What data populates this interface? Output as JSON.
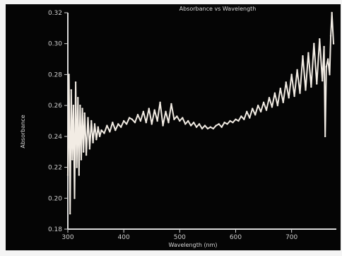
{
  "chart_data": {
    "type": "line",
    "title": "Absorbance vs Wavelength",
    "xlabel": "Wavelength (nm)",
    "ylabel": "Absorbance",
    "xlim": [
      300,
      780
    ],
    "ylim": [
      0.18,
      0.32
    ],
    "xticks": [
      300,
      400,
      500,
      600,
      700
    ],
    "xtick_labels": [
      "300",
      "400",
      "500",
      "600",
      "700"
    ],
    "yticks": [
      0.18,
      0.2,
      0.22,
      0.24,
      0.26,
      0.28,
      0.3,
      0.32
    ],
    "ytick_labels": [
      "0.18",
      "0.20",
      "0.22",
      "0.24",
      "0.26",
      "0.28",
      "0.30",
      "0.32"
    ],
    "grid": false,
    "colors": {
      "background": "#050505",
      "trace": "#f2ece4",
      "axes": "#d9d9d9"
    },
    "series": [
      {
        "x": [
          300,
          302,
          304,
          306,
          308,
          310,
          312,
          314,
          316,
          318,
          320,
          322,
          324,
          326,
          328,
          330,
          333,
          336,
          339,
          342,
          345,
          348,
          351,
          354,
          357,
          360,
          365,
          370,
          375,
          380,
          385,
          390,
          395,
          400,
          405,
          410,
          415,
          420,
          425,
          430,
          435,
          440,
          445,
          450,
          455,
          460,
          465,
          470,
          475,
          480,
          485,
          490,
          495,
          500,
          505,
          510,
          515,
          520,
          525,
          530,
          535,
          540,
          545,
          550,
          555,
          560,
          565,
          570,
          575,
          580,
          585,
          590,
          595,
          600,
          605,
          610,
          615,
          620,
          625,
          630,
          635,
          640,
          645,
          650,
          655,
          660,
          665,
          670,
          675,
          680,
          685,
          690,
          695,
          700,
          705,
          710,
          715,
          720,
          725,
          730,
          735,
          740,
          745,
          750,
          755,
          758,
          760,
          762,
          765,
          768,
          770,
          772,
          775
        ],
        "y": [
          0.215,
          0.28,
          0.19,
          0.27,
          0.225,
          0.26,
          0.2,
          0.275,
          0.22,
          0.265,
          0.215,
          0.26,
          0.225,
          0.258,
          0.23,
          0.255,
          0.228,
          0.252,
          0.232,
          0.25,
          0.236,
          0.248,
          0.238,
          0.246,
          0.24,
          0.244,
          0.242,
          0.247,
          0.243,
          0.249,
          0.244,
          0.248,
          0.246,
          0.25,
          0.248,
          0.252,
          0.251,
          0.249,
          0.254,
          0.25,
          0.256,
          0.249,
          0.258,
          0.248,
          0.257,
          0.25,
          0.262,
          0.247,
          0.256,
          0.249,
          0.261,
          0.251,
          0.253,
          0.25,
          0.252,
          0.248,
          0.25,
          0.247,
          0.249,
          0.246,
          0.248,
          0.245,
          0.247,
          0.245,
          0.246,
          0.245,
          0.247,
          0.248,
          0.246,
          0.249,
          0.248,
          0.25,
          0.249,
          0.251,
          0.25,
          0.253,
          0.251,
          0.256,
          0.252,
          0.258,
          0.254,
          0.26,
          0.256,
          0.262,
          0.257,
          0.265,
          0.259,
          0.268,
          0.26,
          0.271,
          0.262,
          0.275,
          0.265,
          0.28,
          0.266,
          0.283,
          0.268,
          0.292,
          0.27,
          0.294,
          0.272,
          0.3,
          0.274,
          0.303,
          0.276,
          0.298,
          0.24,
          0.285,
          0.29,
          0.28,
          0.305,
          0.32,
          0.3
        ]
      }
    ]
  }
}
